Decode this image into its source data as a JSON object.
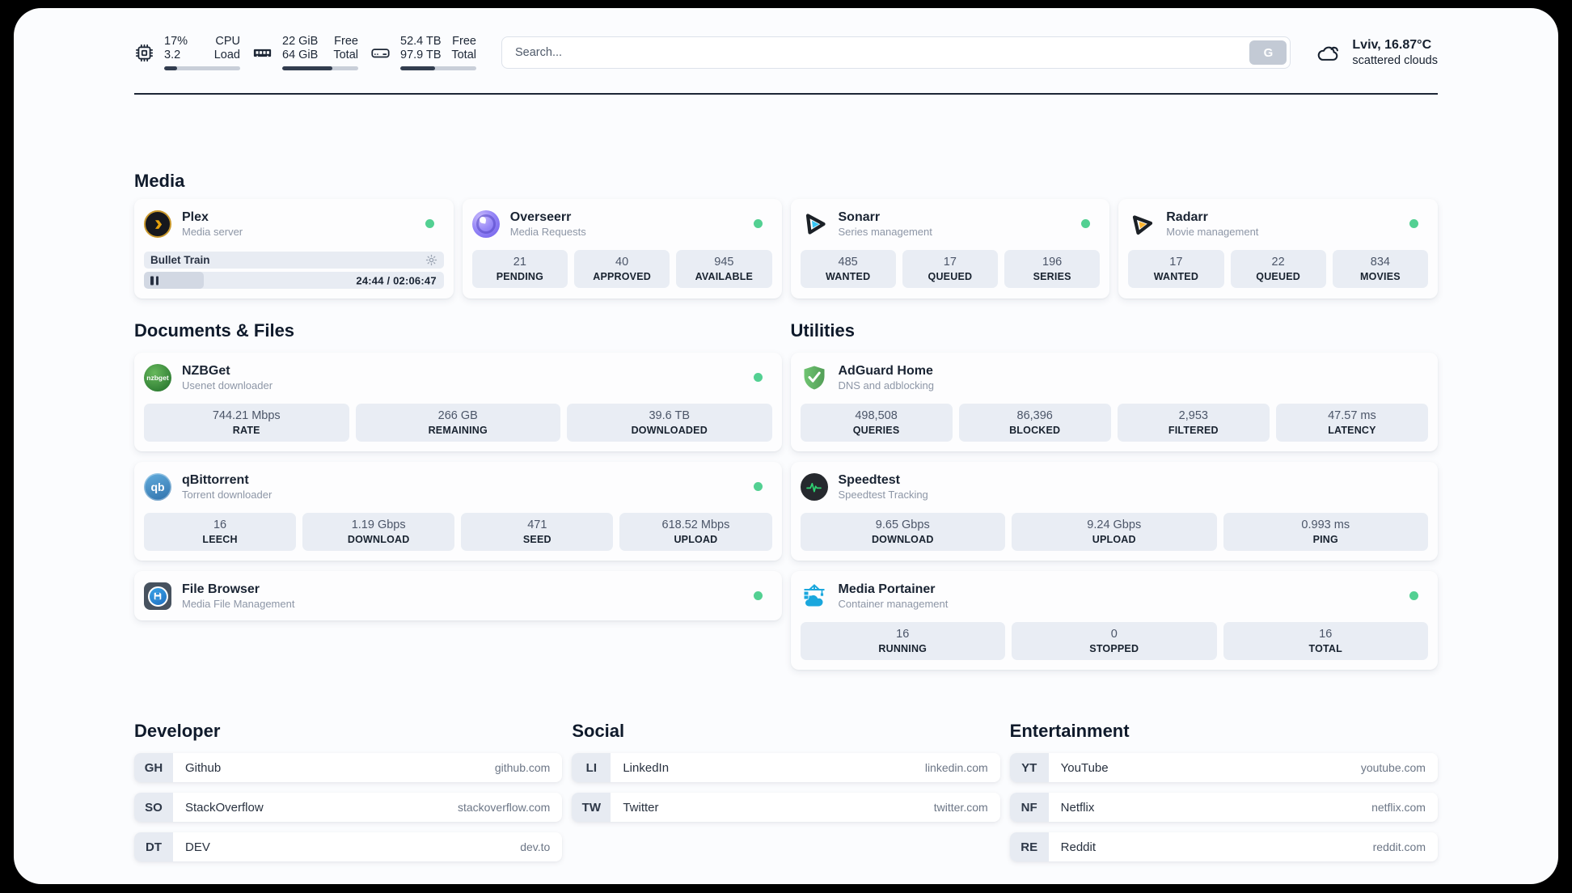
{
  "colors": {
    "status_online": "#53d092",
    "plex_gold": "#e5a00d",
    "sonarr_cyan": "#35c5f4",
    "radarr_orange": "#fdb52f",
    "speedtest_green": "#2fd573",
    "portainer_blue": "#1aa7dd"
  },
  "header": {
    "cpu": {
      "top_value": "17%",
      "bottom_value": "3.2",
      "top_label": "CPU",
      "bottom_label": "Load",
      "progress_pct": 17
    },
    "memory": {
      "top_value": "22 GiB",
      "bottom_value": "64 GiB",
      "top_label": "Free",
      "bottom_label": "Total",
      "progress_pct": 66
    },
    "disk": {
      "top_value": "52.4 TB",
      "bottom_value": "97.9 TB",
      "top_label": "Free",
      "bottom_label": "Total",
      "progress_pct": 46
    },
    "search": {
      "placeholder": "Search...",
      "button_label": "G"
    },
    "weather": {
      "location": "Lviv, 16.87°C",
      "condition": "scattered clouds"
    }
  },
  "sections": {
    "media": {
      "title": "Media",
      "apps": {
        "plex": {
          "name": "Plex",
          "subtitle": "Media server",
          "player": {
            "title": "Bullet Train",
            "time": "24:44 / 02:06:47",
            "progress_pct": 20
          }
        },
        "overseerr": {
          "name": "Overseerr",
          "subtitle": "Media Requests",
          "stats": [
            {
              "value": "21",
              "label": "PENDING"
            },
            {
              "value": "40",
              "label": "APPROVED"
            },
            {
              "value": "945",
              "label": "AVAILABLE"
            }
          ]
        },
        "sonarr": {
          "name": "Sonarr",
          "subtitle": "Series management",
          "stats": [
            {
              "value": "485",
              "label": "WANTED"
            },
            {
              "value": "17",
              "label": "QUEUED"
            },
            {
              "value": "196",
              "label": "SERIES"
            }
          ]
        },
        "radarr": {
          "name": "Radarr",
          "subtitle": "Movie management",
          "stats": [
            {
              "value": "17",
              "label": "WANTED"
            },
            {
              "value": "22",
              "label": "QUEUED"
            },
            {
              "value": "834",
              "label": "MOVIES"
            }
          ]
        }
      }
    },
    "documents": {
      "title": "Documents & Files",
      "apps": {
        "nzbget": {
          "name": "NZBGet",
          "subtitle": "Usenet downloader",
          "icon_text": "nzbget",
          "stats": [
            {
              "value": "744.21 Mbps",
              "label": "RATE"
            },
            {
              "value": "266 GB",
              "label": "REMAINING"
            },
            {
              "value": "39.6 TB",
              "label": "DOWNLOADED"
            }
          ]
        },
        "qbittorrent": {
          "name": "qBittorrent",
          "subtitle": "Torrent downloader",
          "icon_text": "qb",
          "stats": [
            {
              "value": "16",
              "label": "LEECH"
            },
            {
              "value": "1.19 Gbps",
              "label": "DOWNLOAD"
            },
            {
              "value": "471",
              "label": "SEED"
            },
            {
              "value": "618.52 Mbps",
              "label": "UPLOAD"
            }
          ]
        },
        "filebrowser": {
          "name": "File Browser",
          "subtitle": "Media File Management"
        }
      }
    },
    "utilities": {
      "title": "Utilities",
      "apps": {
        "adguard": {
          "name": "AdGuard Home",
          "subtitle": "DNS and adblocking",
          "stats": [
            {
              "value": "498,508",
              "label": "QUERIES"
            },
            {
              "value": "86,396",
              "label": "BLOCKED"
            },
            {
              "value": "2,953",
              "label": "FILTERED"
            },
            {
              "value": "47.57 ms",
              "label": "LATENCY"
            }
          ]
        },
        "speedtest": {
          "name": "Speedtest",
          "subtitle": "Speedtest Tracking",
          "stats": [
            {
              "value": "9.65 Gbps",
              "label": "DOWNLOAD"
            },
            {
              "value": "9.24 Gbps",
              "label": "UPLOAD"
            },
            {
              "value": "0.993 ms",
              "label": "PING"
            }
          ]
        },
        "portainer": {
          "name": "Media Portainer",
          "subtitle": "Container management",
          "stats": [
            {
              "value": "16",
              "label": "RUNNING"
            },
            {
              "value": "0",
              "label": "STOPPED"
            },
            {
              "value": "16",
              "label": "TOTAL"
            }
          ]
        }
      }
    }
  },
  "bookmarks": {
    "developer": {
      "title": "Developer",
      "links": [
        {
          "abbr": "GH",
          "name": "Github",
          "url": "github.com"
        },
        {
          "abbr": "SO",
          "name": "StackOverflow",
          "url": "stackoverflow.com"
        },
        {
          "abbr": "DT",
          "name": "DEV",
          "url": "dev.to"
        }
      ]
    },
    "social": {
      "title": "Social",
      "links": [
        {
          "abbr": "LI",
          "name": "LinkedIn",
          "url": "linkedin.com"
        },
        {
          "abbr": "TW",
          "name": "Twitter",
          "url": "twitter.com"
        }
      ]
    },
    "entertainment": {
      "title": "Entertainment",
      "links": [
        {
          "abbr": "YT",
          "name": "YouTube",
          "url": "youtube.com"
        },
        {
          "abbr": "NF",
          "name": "Netflix",
          "url": "netflix.com"
        },
        {
          "abbr": "RE",
          "name": "Reddit",
          "url": "reddit.com"
        }
      ]
    }
  }
}
